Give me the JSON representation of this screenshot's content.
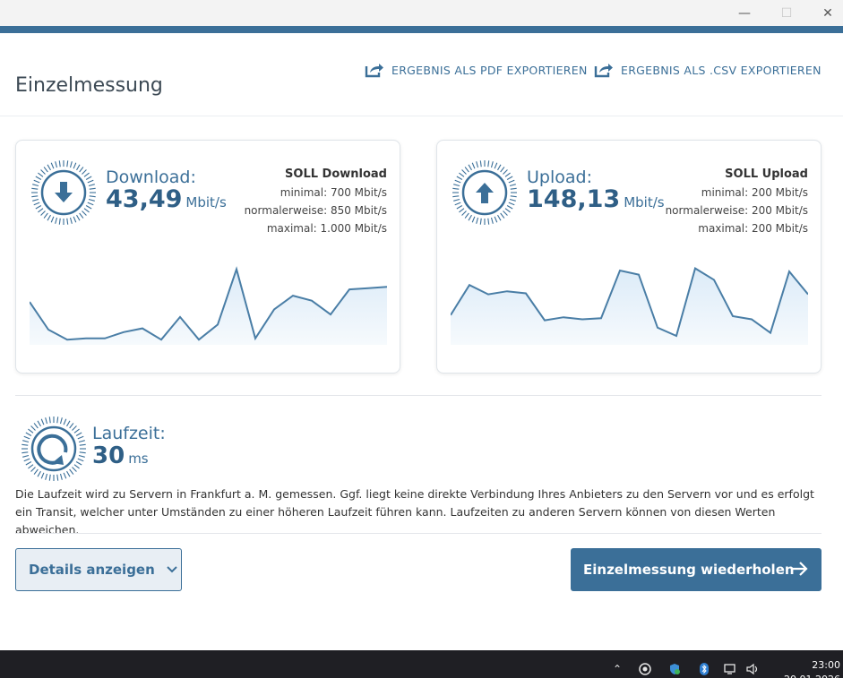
{
  "window": {
    "minimize_icon": "minimize-icon",
    "maximize_icon": "maximize-icon",
    "close_icon": "close-icon"
  },
  "header": {
    "title": "Einzelmessung",
    "export_pdf_label": "ERGEBNIS ALS PDF EXPORTIEREN",
    "export_csv_label": "ERGEBNIS ALS .CSV EXPORTIEREN"
  },
  "download": {
    "label": "Download:",
    "value": "43,49",
    "unit": "Mbit/s",
    "soll_title": "SOLL Download",
    "soll_min": "minimal: 700 Mbit/s",
    "soll_normal": "normalerweise: 850 Mbit/s",
    "soll_max": "maximal: 1.000 Mbit/s",
    "series": [
      30,
      41,
      45,
      44.5,
      44.5,
      42,
      40.5,
      45,
      36,
      45,
      39,
      17,
      44.5,
      33,
      27.5,
      29.5,
      35,
      25,
      24.5,
      24
    ]
  },
  "upload": {
    "label": "Upload:",
    "value": "148,13",
    "unit": "Mbit/s",
    "soll_title": "SOLL Upload",
    "soll_min": "minimal: 200 Mbit/s",
    "soll_normal": "normalerweise: 200 Mbit/s",
    "soll_max": "maximal: 200 Mbit/s",
    "series": [
      121,
      150,
      141,
      144,
      142,
      116,
      119,
      117,
      118,
      164,
      160,
      109,
      101,
      166,
      155,
      120,
      117,
      104,
      163,
      141
    ]
  },
  "latency": {
    "label": "Laufzeit:",
    "value": "30",
    "unit": "ms",
    "description": "Die Laufzeit wird zu Servern in Frankfurt a. M. gemessen. Ggf. liegt keine direkte Verbindung Ihres Anbieters zu den Servern vor und es erfolgt ein Transit, welcher unter Umständen zu einer höheren Laufzeit führen kann. Laufzeiten zu anderen Servern können von diesen Werten abweichen."
  },
  "actions": {
    "details_label": "Details anzeigen",
    "repeat_label": "Einzelmessung wiederholen"
  },
  "taskbar": {
    "time": "23:00",
    "date": "20.01.2026"
  },
  "colors": {
    "accent": "#3b6f98",
    "accent_dark": "#2f5f86"
  }
}
